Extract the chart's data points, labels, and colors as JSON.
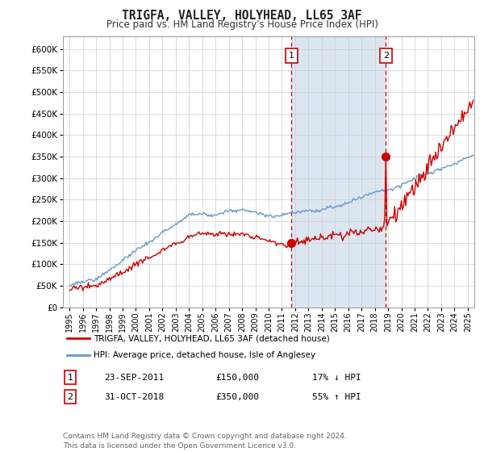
{
  "title": "TRIGFA, VALLEY, HOLYHEAD, LL65 3AF",
  "subtitle": "Price paid vs. HM Land Registry's House Price Index (HPI)",
  "ytick_values": [
    0,
    50000,
    100000,
    150000,
    200000,
    250000,
    300000,
    350000,
    400000,
    450000,
    500000,
    550000,
    600000
  ],
  "ylim": [
    0,
    630000
  ],
  "xlim_start": 1994.5,
  "xlim_end": 2025.5,
  "sale1_x": 2011.73,
  "sale1_y": 150000,
  "sale1_label": "1",
  "sale1_date": "23-SEP-2011",
  "sale1_price": "£150,000",
  "sale1_pct": "17% ↓ HPI",
  "sale2_x": 2018.83,
  "sale2_y": 350000,
  "sale2_label": "2",
  "sale2_date": "31-OCT-2018",
  "sale2_price": "£350,000",
  "sale2_pct": "55% ↑ HPI",
  "shade_color": "#dce6f1",
  "vline_color": "#cc0000",
  "hpi_line_color": "#6699cc",
  "price_line_color": "#cc0000",
  "legend_label1": "TRIGFA, VALLEY, HOLYHEAD, LL65 3AF (detached house)",
  "legend_label2": "HPI: Average price, detached house, Isle of Anglesey",
  "footer": "Contains HM Land Registry data © Crown copyright and database right 2024.\nThis data is licensed under the Open Government Licence v3.0.",
  "background_color": "#ffffff",
  "plot_bg_color": "#ffffff"
}
